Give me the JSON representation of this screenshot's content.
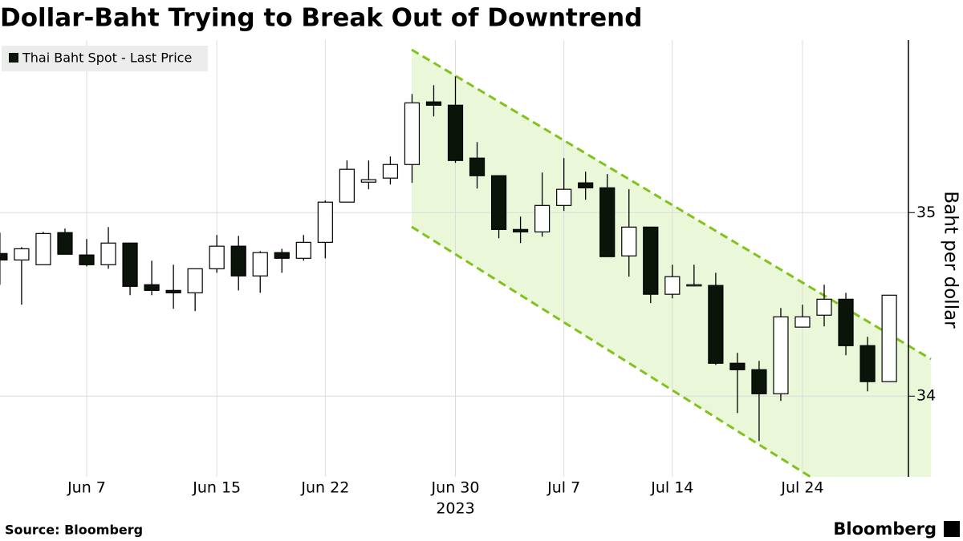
{
  "chart_data": {
    "type": "candlestick",
    "title": "Dollar-Baht Trying to Break Out of Downtrend",
    "legend": "Thai Baht Spot - Last Price",
    "y_label": "Baht per dollar",
    "source": "Source: Bloomberg",
    "brand": "Bloomberg",
    "year_label": "2023",
    "categories": [
      null,
      null,
      null,
      null,
      "Jun 7",
      null,
      null,
      null,
      null,
      null,
      "Jun 15",
      null,
      null,
      null,
      null,
      "Jun 22",
      null,
      null,
      null,
      null,
      null,
      "Jun 30",
      null,
      null,
      null,
      null,
      "Jul 7",
      null,
      null,
      null,
      null,
      "Jul 14",
      null,
      null,
      null,
      null,
      null,
      "Jul 24",
      null,
      null,
      null,
      null
    ],
    "open": [
      34.777,
      34.742,
      34.716,
      34.891,
      34.769,
      34.716,
      34.834,
      34.607,
      34.576,
      34.563,
      34.694,
      34.817,
      34.655,
      34.782,
      34.751,
      34.838,
      35.057,
      35.166,
      35.188,
      35.262,
      35.603,
      35.585,
      35.297,
      35.201,
      34.908,
      34.895,
      35.039,
      35.162,
      35.135,
      34.764,
      34.921,
      34.555,
      34.603,
      34.603,
      34.179,
      34.144,
      34.013,
      34.376,
      34.441,
      34.528,
      34.275,
      34.079
    ],
    "high": [
      34.891,
      34.812,
      34.895,
      34.913,
      34.856,
      34.921,
      34.834,
      34.738,
      34.716,
      34.694,
      34.878,
      34.873,
      34.79,
      34.803,
      34.878,
      35.066,
      35.284,
      35.284,
      35.306,
      35.646,
      35.694,
      35.742,
      35.384,
      35.201,
      34.978,
      35.218,
      35.297,
      35.223,
      35.21,
      35.127,
      34.921,
      34.716,
      34.716,
      34.672,
      34.236,
      34.192,
      34.48,
      34.498,
      34.607,
      34.563,
      34.323,
      34.55
    ],
    "low": [
      34.607,
      34.498,
      34.716,
      34.773,
      34.707,
      34.694,
      34.55,
      34.55,
      34.476,
      34.463,
      34.672,
      34.576,
      34.563,
      34.672,
      34.738,
      34.751,
      35.057,
      35.127,
      35.153,
      35.162,
      35.524,
      35.271,
      35.131,
      34.86,
      34.834,
      34.869,
      35.009,
      35.07,
      34.76,
      34.651,
      34.507,
      34.533,
      34.598,
      34.17,
      33.908,
      33.755,
      33.974,
      34.376,
      34.38,
      34.223,
      34.026,
      34.079
    ],
    "close": [
      34.742,
      34.803,
      34.886,
      34.773,
      34.716,
      34.834,
      34.598,
      34.576,
      34.563,
      34.694,
      34.817,
      34.655,
      34.782,
      34.751,
      34.838,
      35.057,
      35.236,
      35.179,
      35.262,
      35.598,
      35.585,
      35.284,
      35.201,
      34.908,
      34.895,
      35.039,
      35.127,
      35.135,
      34.76,
      34.921,
      34.555,
      34.651,
      34.607,
      34.179,
      34.144,
      34.013,
      34.432,
      34.432,
      34.528,
      34.275,
      34.079,
      34.55
    ],
    "up_color": "#ffffff",
    "down_color": "#0b1408",
    "ylim": [
      33.56,
      35.94
    ],
    "yticks": [
      34,
      35
    ],
    "grid": true
  }
}
